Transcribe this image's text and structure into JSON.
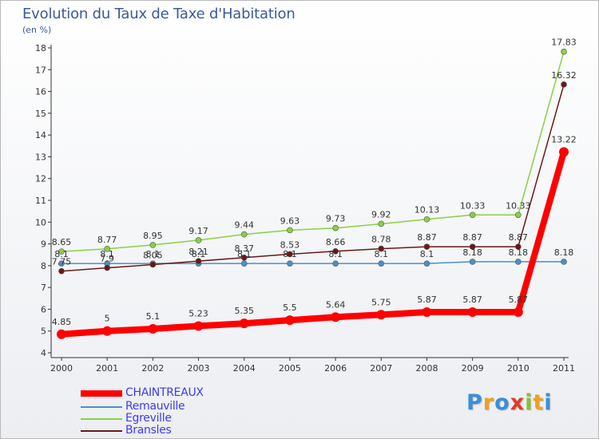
{
  "chart_data": {
    "type": "line",
    "title": "Evolution du Taux de Taxe d'Habitation",
    "ylabel": "(en %)",
    "x": [
      "2000",
      "2001",
      "2002",
      "2003",
      "2004",
      "2005",
      "2006",
      "2007",
      "2008",
      "2009",
      "2010",
      "2011"
    ],
    "ylim": [
      4,
      18
    ],
    "yticks": [
      4,
      5,
      6,
      7,
      8,
      9,
      10,
      11,
      12,
      13,
      14,
      15,
      16,
      17,
      18
    ],
    "grid": false,
    "legend": "bottom-left",
    "series": [
      {
        "name": "CHAINTREAUX",
        "color": "#ff0000",
        "values": [
          4.85,
          5,
          5.1,
          5.23,
          5.35,
          5.5,
          5.64,
          5.75,
          5.87,
          5.87,
          5.87,
          13.22
        ],
        "labels": [
          "4.85",
          "5",
          "5.1",
          "5.23",
          "5.35",
          "5.5",
          "5.64",
          "5.75",
          "5.87",
          "5.87",
          "5.87",
          "13.22"
        ]
      },
      {
        "name": "Remauville",
        "color": "#4a90c8",
        "values": [
          8.1,
          8.1,
          8.1,
          8.1,
          8.1,
          8.1,
          8.1,
          8.1,
          8.1,
          8.18,
          8.18,
          8.18
        ],
        "labels": [
          "8.1",
          "8.1",
          "8.1",
          "8.1",
          "8.1",
          "8.1",
          "8.1",
          "8.1",
          "8.1",
          "8.18",
          "8.18",
          "8.18"
        ]
      },
      {
        "name": "Egreville",
        "color": "#88d044",
        "values": [
          8.65,
          8.77,
          8.95,
          9.17,
          9.44,
          9.63,
          9.73,
          9.92,
          10.13,
          10.33,
          10.33,
          17.83
        ],
        "labels": [
          "8.65",
          "8.77",
          "8.95",
          "9.17",
          "9.44",
          "9.63",
          "9.73",
          "9.92",
          "10.13",
          "10.33",
          "10.33",
          "17.83"
        ]
      },
      {
        "name": "Bransles",
        "color": "#6a1818",
        "values": [
          7.75,
          7.9,
          8.05,
          8.21,
          8.37,
          8.53,
          8.66,
          8.78,
          8.87,
          8.87,
          8.87,
          16.32
        ],
        "labels": [
          "7.75",
          "7.9",
          "8.05",
          "8.21",
          "8.37",
          "8.53",
          "8.66",
          "8.78",
          "8.87",
          "8.87",
          "8.87",
          "16.32"
        ]
      }
    ]
  },
  "logo": {
    "letters": [
      {
        "ch": "P",
        "color": "#3a8fd8"
      },
      {
        "ch": "r",
        "color": "#f0a020"
      },
      {
        "ch": "o",
        "color": "#3a8fd8"
      },
      {
        "ch": "x",
        "color": "#e03a2a"
      },
      {
        "ch": "i",
        "color": "#88c030"
      },
      {
        "ch": "t",
        "color": "#f0a020"
      },
      {
        "ch": "i",
        "color": "#3a8fd8"
      }
    ]
  }
}
